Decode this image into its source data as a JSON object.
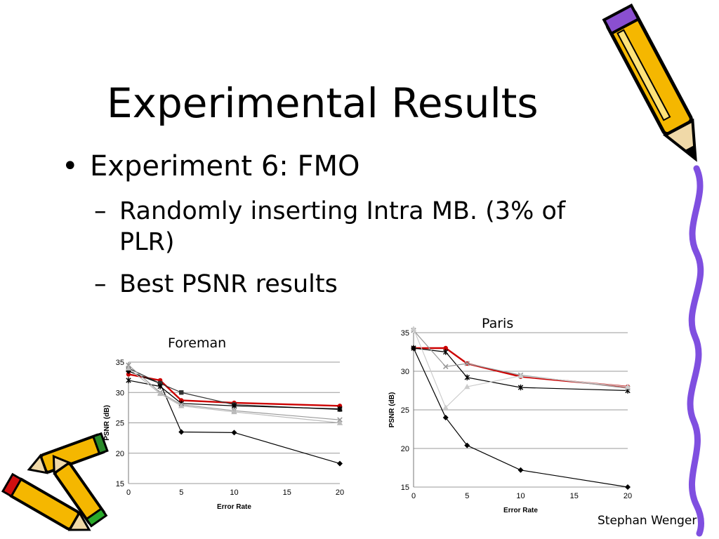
{
  "slide": {
    "title": "Experimental Results",
    "bullet_1": "Experiment 6: FMO",
    "bullet_1_marker": "•",
    "sub_marker": "–",
    "sub_1_line1": "Randomly inserting Intra MB. (3% of",
    "sub_1_line2": "PLR)",
    "sub_2": "Best PSNR results",
    "author": "Stephan Wenger"
  },
  "decorations": {
    "top_right": "pencil-icon",
    "right_edge": "squiggle-line",
    "bottom_left": "pencils-cluster-icon"
  },
  "chart_data": [
    {
      "type": "line",
      "title": "Foreman",
      "xlabel": "Error Rate",
      "ylabel": "PSNR (dB)",
      "xlim": [
        0,
        20
      ],
      "ylim": [
        15,
        35
      ],
      "xticks": [
        0,
        5,
        10,
        15,
        20
      ],
      "yticks": [
        15,
        20,
        25,
        30,
        35
      ],
      "grid": "horizontal",
      "series": [
        {
          "color": "#cc0000",
          "marker": "circle",
          "x": [
            0,
            3,
            5,
            10,
            20
          ],
          "y": [
            33,
            32,
            28.7,
            28.3,
            27.8
          ]
        },
        {
          "color": "#000000",
          "marker": "diamond",
          "x": [
            0,
            3,
            5,
            10,
            20
          ],
          "y": [
            33.5,
            31.5,
            23.5,
            23.4,
            18.3
          ]
        },
        {
          "color": "#333333",
          "marker": "square",
          "x": [
            0,
            3,
            5,
            10,
            20
          ],
          "y": [
            34,
            31.5,
            30,
            28,
            27.2
          ]
        },
        {
          "color": "#000000",
          "marker": "star",
          "x": [
            0,
            3,
            5,
            10,
            20
          ],
          "y": [
            32,
            31,
            28.2,
            27.8,
            27.3
          ]
        },
        {
          "color": "#999999",
          "marker": "cross",
          "x": [
            0,
            3,
            5,
            10,
            20
          ],
          "y": [
            34.5,
            30,
            28,
            27,
            25.5
          ]
        },
        {
          "color": "#bbbbbb",
          "marker": "triangle",
          "x": [
            0,
            3,
            5,
            10,
            20
          ],
          "y": [
            34,
            29.8,
            27.8,
            26.8,
            25
          ]
        }
      ]
    },
    {
      "type": "line",
      "title": "Paris",
      "xlabel": "Error Rate",
      "ylabel": "PSNR (dB)",
      "xlim": [
        0,
        20
      ],
      "ylim": [
        15,
        35
      ],
      "xticks": [
        0,
        5,
        10,
        15,
        20
      ],
      "yticks": [
        15,
        20,
        25,
        30,
        35
      ],
      "grid": "horizontal",
      "series": [
        {
          "color": "#cc0000",
          "marker": "circle",
          "x": [
            0,
            3,
            5,
            10,
            20
          ],
          "y": [
            33,
            33,
            31,
            29.3,
            28
          ]
        },
        {
          "color": "#000000",
          "marker": "diamond",
          "x": [
            0,
            3,
            5,
            10,
            20
          ],
          "y": [
            33,
            24,
            20.4,
            17.2,
            15
          ]
        },
        {
          "color": "#000000",
          "marker": "star",
          "x": [
            0,
            3,
            5,
            10,
            20
          ],
          "y": [
            33,
            32.5,
            29.2,
            27.9,
            27.5
          ]
        },
        {
          "color": "#999999",
          "marker": "cross",
          "x": [
            0,
            3,
            5,
            10,
            20
          ],
          "y": [
            35.3,
            30.6,
            31,
            29.5,
            27.8
          ]
        },
        {
          "color": "#cccccc",
          "marker": "triangle",
          "x": [
            0,
            3,
            5,
            10,
            20
          ],
          "y": [
            35.5,
            25.3,
            28,
            29.4,
            28
          ]
        }
      ]
    }
  ]
}
